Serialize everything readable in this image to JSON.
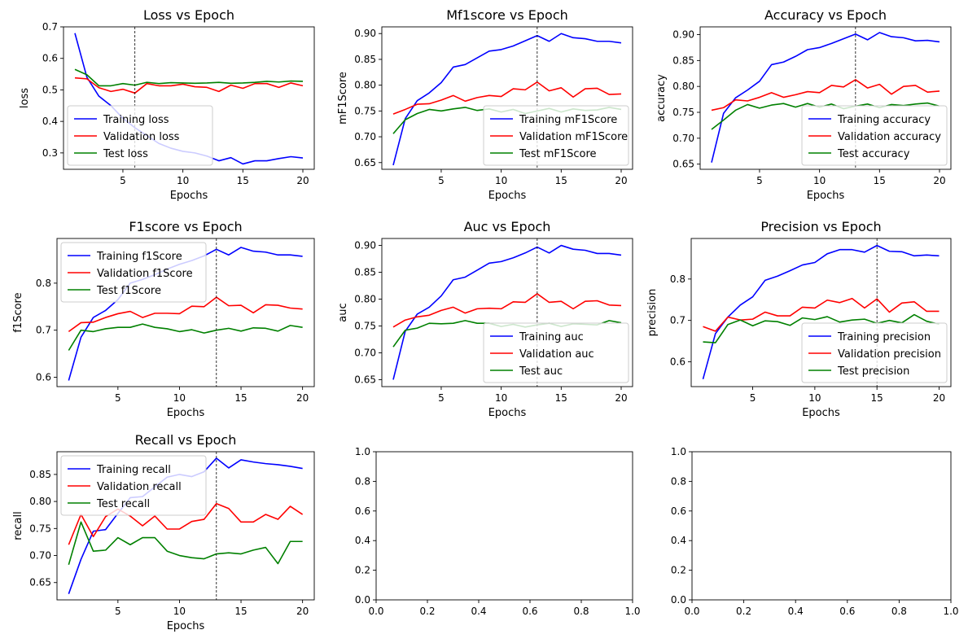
{
  "figure": {
    "colors": {
      "training": "#0000ff",
      "validation": "#ff0000",
      "test": "#008000",
      "vline": "#000000"
    }
  },
  "chart_data": [
    {
      "type": "line",
      "title": "Loss vs Epoch",
      "xlabel": "Epochs",
      "ylabel": "loss",
      "xlim": [
        0.05,
        20.95
      ],
      "ylim": [
        0.248,
        0.7
      ],
      "xticks": [
        5,
        10,
        15,
        20
      ],
      "yticks": [
        0.3,
        0.4,
        0.5,
        0.6,
        0.7
      ],
      "vline": 6,
      "legend_loc": "lower-left",
      "x": [
        1,
        2,
        3,
        4,
        5,
        6,
        7,
        8,
        9,
        10,
        11,
        12,
        13,
        14,
        15,
        16,
        17,
        18,
        19,
        20
      ],
      "series": [
        {
          "name": "Training loss",
          "color": "#0000ff",
          "values": [
            0.68,
            0.54,
            0.48,
            0.45,
            0.41,
            0.38,
            0.355,
            0.33,
            0.315,
            0.305,
            0.3,
            0.29,
            0.275,
            0.285,
            0.265,
            0.275,
            0.275,
            0.282,
            0.288,
            0.284
          ]
        },
        {
          "name": "Validation loss",
          "color": "#ff0000",
          "values": [
            0.538,
            0.535,
            0.507,
            0.495,
            0.502,
            0.49,
            0.52,
            0.513,
            0.513,
            0.518,
            0.51,
            0.508,
            0.495,
            0.515,
            0.505,
            0.52,
            0.52,
            0.508,
            0.522,
            0.513
          ]
        },
        {
          "name": "Test loss",
          "color": "#008000",
          "values": [
            0.565,
            0.548,
            0.513,
            0.513,
            0.52,
            0.515,
            0.524,
            0.52,
            0.523,
            0.522,
            0.521,
            0.522,
            0.524,
            0.521,
            0.522,
            0.524,
            0.527,
            0.525,
            0.528,
            0.527
          ]
        }
      ]
    },
    {
      "type": "line",
      "title": "Mf1score vs Epoch",
      "xlabel": "Epochs",
      "ylabel": "mF1Score",
      "xlim": [
        0.05,
        20.95
      ],
      "ylim": [
        0.637,
        0.913
      ],
      "xticks": [
        5,
        10,
        15,
        20
      ],
      "yticks": [
        0.65,
        0.7,
        0.75,
        0.8,
        0.85,
        0.9
      ],
      "vline": 13,
      "legend_loc": "lower-right",
      "x": [
        1,
        2,
        3,
        4,
        5,
        6,
        7,
        8,
        9,
        10,
        11,
        12,
        13,
        14,
        15,
        16,
        17,
        18,
        19,
        20
      ],
      "series": [
        {
          "name": "Training mF1Score",
          "color": "#0000ff",
          "values": [
            0.645,
            0.735,
            0.77,
            0.785,
            0.805,
            0.835,
            0.84,
            0.853,
            0.866,
            0.869,
            0.876,
            0.886,
            0.896,
            0.885,
            0.9,
            0.892,
            0.89,
            0.885,
            0.885,
            0.882
          ]
        },
        {
          "name": "Validation mF1Score",
          "color": "#ff0000",
          "values": [
            0.744,
            0.753,
            0.763,
            0.764,
            0.771,
            0.78,
            0.769,
            0.776,
            0.78,
            0.778,
            0.793,
            0.791,
            0.806,
            0.789,
            0.795,
            0.777,
            0.793,
            0.794,
            0.782,
            0.783
          ]
        },
        {
          "name": "Test mF1Score",
          "color": "#008000",
          "values": [
            0.706,
            0.733,
            0.745,
            0.753,
            0.75,
            0.754,
            0.757,
            0.751,
            0.754,
            0.748,
            0.753,
            0.745,
            0.75,
            0.755,
            0.748,
            0.754,
            0.751,
            0.752,
            0.757,
            0.753
          ]
        }
      ]
    },
    {
      "type": "line",
      "title": "Accuracy vs Epoch",
      "xlabel": "Epochs",
      "ylabel": "accuracy",
      "xlim": [
        0.05,
        20.95
      ],
      "ylim": [
        0.64,
        0.915
      ],
      "xticks": [
        5,
        10,
        15,
        20
      ],
      "yticks": [
        0.65,
        0.7,
        0.75,
        0.8,
        0.85,
        0.9
      ],
      "vline": 13,
      "legend_loc": "lower-right",
      "x": [
        1,
        2,
        3,
        4,
        5,
        6,
        7,
        8,
        9,
        10,
        11,
        12,
        13,
        14,
        15,
        16,
        17,
        18,
        19,
        20
      ],
      "series": [
        {
          "name": "Training accuracy",
          "color": "#0000ff",
          "values": [
            0.653,
            0.748,
            0.778,
            0.793,
            0.81,
            0.842,
            0.847,
            0.858,
            0.871,
            0.875,
            0.883,
            0.892,
            0.901,
            0.89,
            0.904,
            0.896,
            0.894,
            0.888,
            0.889,
            0.886
          ]
        },
        {
          "name": "Validation accuracy",
          "color": "#ff0000",
          "values": [
            0.754,
            0.759,
            0.774,
            0.772,
            0.779,
            0.788,
            0.779,
            0.784,
            0.79,
            0.788,
            0.802,
            0.799,
            0.813,
            0.797,
            0.804,
            0.785,
            0.8,
            0.802,
            0.789,
            0.791
          ]
        },
        {
          "name": "Test accuracy",
          "color": "#008000",
          "values": [
            0.717,
            0.735,
            0.754,
            0.765,
            0.758,
            0.764,
            0.767,
            0.76,
            0.767,
            0.76,
            0.766,
            0.757,
            0.762,
            0.766,
            0.759,
            0.765,
            0.763,
            0.766,
            0.768,
            0.762
          ]
        }
      ]
    },
    {
      "type": "line",
      "title": "F1score vs Epoch",
      "xlabel": "Epochs",
      "ylabel": "f1Score",
      "xlim": [
        0.05,
        20.95
      ],
      "ylim": [
        0.58,
        0.895
      ],
      "xticks": [
        5,
        10,
        15,
        20
      ],
      "yticks": [
        0.6,
        0.7,
        0.8
      ],
      "vline": 13,
      "legend_loc": "upper-left",
      "x": [
        1,
        2,
        3,
        4,
        5,
        6,
        7,
        8,
        9,
        10,
        11,
        12,
        13,
        14,
        15,
        16,
        17,
        18,
        19,
        20
      ],
      "series": [
        {
          "name": "Training f1Score",
          "color": "#0000ff",
          "values": [
            0.593,
            0.685,
            0.727,
            0.742,
            0.765,
            0.8,
            0.808,
            0.818,
            0.83,
            0.84,
            0.848,
            0.858,
            0.872,
            0.86,
            0.876,
            0.868,
            0.866,
            0.86,
            0.86,
            0.857
          ]
        },
        {
          "name": "Validation f1Score",
          "color": "#ff0000",
          "values": [
            0.697,
            0.716,
            0.717,
            0.727,
            0.735,
            0.74,
            0.727,
            0.736,
            0.736,
            0.735,
            0.751,
            0.75,
            0.77,
            0.752,
            0.753,
            0.737,
            0.754,
            0.753,
            0.747,
            0.745
          ]
        },
        {
          "name": "Test f1Score",
          "color": "#008000",
          "values": [
            0.657,
            0.7,
            0.697,
            0.703,
            0.706,
            0.706,
            0.713,
            0.706,
            0.703,
            0.697,
            0.701,
            0.694,
            0.7,
            0.704,
            0.698,
            0.705,
            0.704,
            0.698,
            0.71,
            0.706
          ]
        }
      ]
    },
    {
      "type": "line",
      "title": "Auc vs Epoch",
      "xlabel": "Epochs",
      "ylabel": "auc",
      "xlim": [
        0.05,
        20.95
      ],
      "ylim": [
        0.637,
        0.913
      ],
      "xticks": [
        5,
        10,
        15,
        20
      ],
      "yticks": [
        0.65,
        0.7,
        0.75,
        0.8,
        0.85,
        0.9
      ],
      "vline": 13,
      "legend_loc": "lower-right",
      "x": [
        1,
        2,
        3,
        4,
        5,
        6,
        7,
        8,
        9,
        10,
        11,
        12,
        13,
        14,
        15,
        16,
        17,
        18,
        19,
        20
      ],
      "series": [
        {
          "name": "Training auc",
          "color": "#0000ff",
          "values": [
            0.65,
            0.74,
            0.772,
            0.785,
            0.806,
            0.836,
            0.841,
            0.854,
            0.867,
            0.87,
            0.877,
            0.886,
            0.897,
            0.886,
            0.9,
            0.893,
            0.891,
            0.885,
            0.885,
            0.882
          ]
        },
        {
          "name": "Validation auc",
          "color": "#ff0000",
          "values": [
            0.748,
            0.761,
            0.767,
            0.77,
            0.779,
            0.785,
            0.774,
            0.782,
            0.783,
            0.782,
            0.795,
            0.794,
            0.81,
            0.794,
            0.796,
            0.782,
            0.796,
            0.797,
            0.789,
            0.788
          ]
        },
        {
          "name": "Test auc",
          "color": "#008000",
          "values": [
            0.711,
            0.742,
            0.746,
            0.755,
            0.754,
            0.755,
            0.76,
            0.755,
            0.755,
            0.749,
            0.753,
            0.748,
            0.752,
            0.755,
            0.749,
            0.754,
            0.753,
            0.752,
            0.76,
            0.756
          ]
        }
      ]
    },
    {
      "type": "line",
      "title": "Precision vs Epoch",
      "xlabel": "Epochs",
      "ylabel": "precision",
      "xlim": [
        0.05,
        20.95
      ],
      "ylim": [
        0.54,
        0.898
      ],
      "xticks": [
        5,
        10,
        15,
        20
      ],
      "yticks": [
        0.6,
        0.7,
        0.8
      ],
      "vline": 15,
      "legend_loc": "lower-right",
      "x": [
        1,
        2,
        3,
        4,
        5,
        6,
        7,
        8,
        9,
        10,
        11,
        12,
        13,
        14,
        15,
        16,
        17,
        18,
        19,
        20
      ],
      "series": [
        {
          "name": "Training precision",
          "color": "#0000ff",
          "values": [
            0.558,
            0.668,
            0.708,
            0.737,
            0.757,
            0.797,
            0.807,
            0.82,
            0.834,
            0.84,
            0.861,
            0.871,
            0.871,
            0.865,
            0.881,
            0.867,
            0.866,
            0.856,
            0.858,
            0.856
          ]
        },
        {
          "name": "Validation precision",
          "color": "#ff0000",
          "values": [
            0.685,
            0.674,
            0.708,
            0.701,
            0.703,
            0.72,
            0.711,
            0.711,
            0.732,
            0.73,
            0.749,
            0.743,
            0.753,
            0.73,
            0.752,
            0.72,
            0.742,
            0.745,
            0.722,
            0.722
          ]
        },
        {
          "name": "Test precision",
          "color": "#008000",
          "values": [
            0.648,
            0.646,
            0.69,
            0.701,
            0.687,
            0.699,
            0.697,
            0.688,
            0.706,
            0.702,
            0.709,
            0.696,
            0.701,
            0.703,
            0.693,
            0.7,
            0.694,
            0.714,
            0.698,
            0.691
          ]
        }
      ]
    },
    {
      "type": "line",
      "title": "Recall vs Epoch",
      "xlabel": "Epochs",
      "ylabel": "recall",
      "xlim": [
        0.05,
        20.95
      ],
      "ylim": [
        0.618,
        0.892
      ],
      "xticks": [
        5,
        10,
        15,
        20
      ],
      "yticks": [
        0.65,
        0.7,
        0.75,
        0.8,
        0.85
      ],
      "vline": 13,
      "legend_loc": "upper-left",
      "x": [
        1,
        2,
        3,
        4,
        5,
        6,
        7,
        8,
        9,
        10,
        11,
        12,
        13,
        14,
        15,
        16,
        17,
        18,
        19,
        20
      ],
      "series": [
        {
          "name": "Training recall",
          "color": "#0000ff",
          "values": [
            0.629,
            0.693,
            0.745,
            0.748,
            0.778,
            0.807,
            0.809,
            0.827,
            0.845,
            0.85,
            0.846,
            0.855,
            0.88,
            0.862,
            0.877,
            0.873,
            0.87,
            0.868,
            0.865,
            0.861
          ]
        },
        {
          "name": "Validation recall",
          "color": "#ff0000",
          "values": [
            0.72,
            0.776,
            0.735,
            0.772,
            0.786,
            0.773,
            0.755,
            0.773,
            0.749,
            0.749,
            0.763,
            0.767,
            0.796,
            0.787,
            0.762,
            0.762,
            0.776,
            0.767,
            0.791,
            0.776
          ]
        },
        {
          "name": "Test recall",
          "color": "#008000",
          "values": [
            0.683,
            0.762,
            0.708,
            0.71,
            0.733,
            0.72,
            0.733,
            0.733,
            0.708,
            0.7,
            0.696,
            0.694,
            0.703,
            0.705,
            0.703,
            0.71,
            0.715,
            0.685,
            0.726,
            0.726
          ]
        }
      ]
    },
    {
      "type": "line",
      "title": "",
      "xlabel": "",
      "ylabel": "",
      "xlim": [
        0,
        1
      ],
      "ylim": [
        0,
        1
      ],
      "xticks": [
        0.0,
        0.2,
        0.4,
        0.6,
        0.8,
        1.0
      ],
      "yticks": [
        0.0,
        0.2,
        0.4,
        0.6,
        0.8,
        1.0
      ],
      "series": []
    },
    {
      "type": "line",
      "title": "",
      "xlabel": "",
      "ylabel": "",
      "xlim": [
        0,
        1
      ],
      "ylim": [
        0,
        1
      ],
      "xticks": [
        0.0,
        0.2,
        0.4,
        0.6,
        0.8,
        1.0
      ],
      "yticks": [
        0.0,
        0.2,
        0.4,
        0.6,
        0.8,
        1.0
      ],
      "series": []
    }
  ]
}
